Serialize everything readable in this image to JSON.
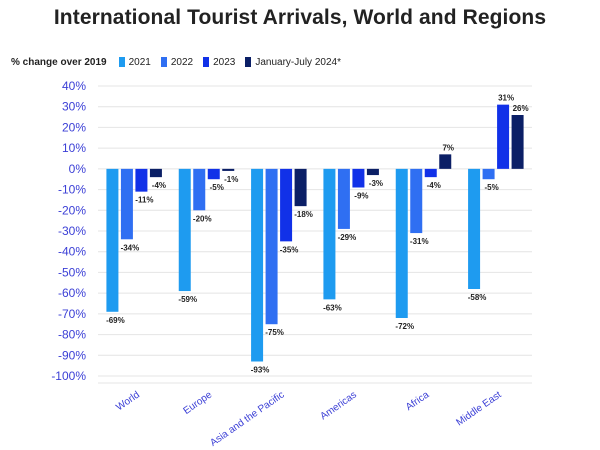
{
  "title": "International Tourist Arrivals, World and Regions",
  "legend_label": "% change over 2019",
  "chart_data": {
    "type": "bar",
    "title": "International Tourist Arrivals, World and Regions",
    "ylabel": "% change over 2019",
    "ylim": [
      -100,
      40
    ],
    "y_ticks": [
      40,
      30,
      20,
      10,
      0,
      -10,
      -20,
      -30,
      -40,
      -50,
      -60,
      -70,
      -80,
      -90,
      -100
    ],
    "y_tick_labels": [
      "40%",
      "30%",
      "20%",
      "10%",
      "0%",
      "-10%",
      "-20%",
      "-30%",
      "-40%",
      "-50%",
      "-60%",
      "-70%",
      "-80%",
      "-90%",
      "-100%"
    ],
    "grid": true,
    "legend_position": "top-left",
    "categories": [
      "World",
      "Europe",
      "Asia and the Pacific",
      "Americas",
      "Africa",
      "Middle East"
    ],
    "series": [
      {
        "name": "2021",
        "color": "#1e9bf0",
        "values": [
          -69,
          -59,
          -93,
          -63,
          -72,
          -58
        ],
        "labels": [
          "-69%",
          "-59%",
          "-93%",
          "-63%",
          "-72%",
          "-58%"
        ]
      },
      {
        "name": "2022",
        "color": "#2f6ff2",
        "values": [
          -34,
          -20,
          -75,
          -29,
          -31,
          -5
        ],
        "labels": [
          "-34%",
          "-20%",
          "-75%",
          "-29%",
          "-31%",
          "-5%"
        ]
      },
      {
        "name": "2023",
        "color": "#1131e8",
        "values": [
          -11,
          -5,
          -35,
          -9,
          -4,
          31
        ],
        "labels": [
          "-11%",
          "-5%",
          "-35%",
          "-9%",
          "-4%",
          "31%"
        ]
      },
      {
        "name": "January-July 2024*",
        "color": "#0b1f66",
        "values": [
          -4,
          -1,
          -18,
          -3,
          7,
          26
        ],
        "labels": [
          "-4%",
          "-1%",
          "-18%",
          "-3%",
          "7%",
          "26%"
        ]
      }
    ]
  }
}
